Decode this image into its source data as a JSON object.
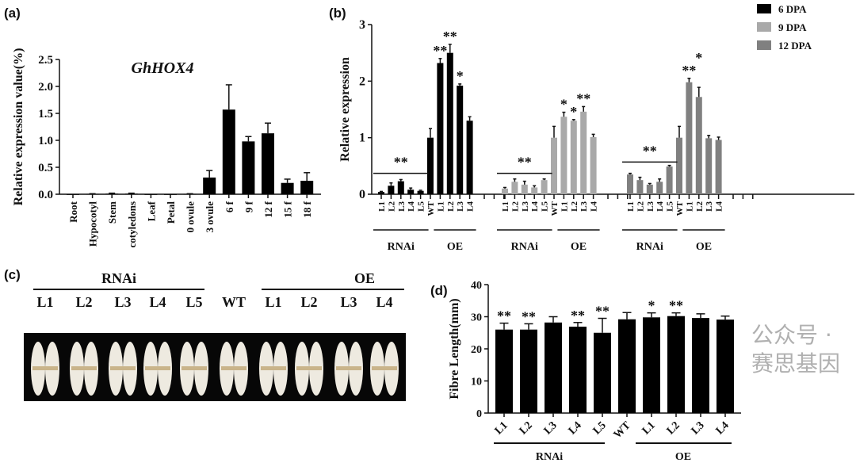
{
  "panel_labels": [
    "(a)",
    "(b)",
    "(c)",
    "(d)"
  ],
  "watermark": "公众号 · 赛思基因",
  "chart_data": [
    {
      "id": "a",
      "type": "bar",
      "title": "GhHOX4",
      "ylabel": "Relative expression value(%)",
      "xlabel": "",
      "ylim": [
        0,
        2.5
      ],
      "yticks": [
        "0.0",
        "0.5",
        "1.0",
        "1.5",
        "2.0",
        "2.5"
      ],
      "categories": [
        "Root",
        "Hypocotyl",
        "Stem",
        "cotyledons",
        "Leaf",
        "Petal",
        "0 ovule",
        "3 ovule",
        "6 f",
        "9 f",
        "12 f",
        "15 f",
        "18 f"
      ],
      "values": [
        0,
        0.005,
        0.01,
        0.01,
        0,
        0,
        0.005,
        0.31,
        1.57,
        0.98,
        1.13,
        0.21,
        0.25
      ],
      "errors": [
        0,
        0.005,
        0.01,
        0.01,
        0,
        0,
        0.005,
        0.13,
        0.46,
        0.09,
        0.19,
        0.07,
        0.15
      ],
      "color": "#000000"
    },
    {
      "id": "b",
      "type": "bar",
      "ylabel": "Relative expression",
      "ylim": [
        0,
        3
      ],
      "yticks": [
        "0",
        "1",
        "2",
        "3"
      ],
      "categories": [
        "L1",
        "L2",
        "L3",
        "L4",
        "L5",
        "WT",
        "L1",
        "L2",
        "L3",
        "L4"
      ],
      "group_labels": [
        "RNAi",
        "OE"
      ],
      "series": [
        {
          "name": "6 DPA",
          "color": "#000000",
          "values": [
            0.04,
            0.15,
            0.23,
            0.08,
            0.06,
            1.0,
            2.32,
            2.5,
            1.92,
            1.3
          ],
          "errors": [
            0.01,
            0.05,
            0.03,
            0.03,
            0.01,
            0.16,
            0.08,
            0.15,
            0.03,
            0.07
          ],
          "rnai_sig": "**",
          "oe_sig": [
            "**",
            "**",
            "*",
            ""
          ]
        },
        {
          "name": "9 DPA",
          "color": "#a9a9a9",
          "values": [
            0.1,
            0.22,
            0.17,
            0.12,
            0.25,
            1.0,
            1.37,
            1.3,
            1.46,
            1.01
          ],
          "errors": [
            0.02,
            0.05,
            0.06,
            0.03,
            0.02,
            0.2,
            0.08,
            0.02,
            0.09,
            0.05
          ],
          "rnai_sig": "**",
          "oe_sig": [
            "*",
            "*",
            "**",
            ""
          ]
        },
        {
          "name": "12 DPA",
          "color": "#808080",
          "values": [
            0.35,
            0.25,
            0.17,
            0.22,
            0.49,
            1.0,
            1.98,
            1.72,
            0.99,
            0.96
          ],
          "errors": [
            0.02,
            0.05,
            0.02,
            0.05,
            0.02,
            0.2,
            0.07,
            0.17,
            0.05,
            0.05
          ],
          "rnai_sig": "**",
          "oe_sig": [
            "**",
            "*",
            "",
            ""
          ]
        }
      ],
      "legend": "top-right"
    },
    {
      "id": "d",
      "type": "bar",
      "ylabel": "Fibre Length(mm)",
      "ylim": [
        0,
        40
      ],
      "yticks": [
        "0",
        "10",
        "20",
        "30",
        "40"
      ],
      "categories": [
        "L1",
        "L2",
        "L3",
        "L4",
        "L5",
        "WT",
        "L1",
        "L2",
        "L3",
        "L4"
      ],
      "group_labels": [
        "RNAi",
        "OE"
      ],
      "values": [
        26,
        26,
        28.2,
        26.9,
        25,
        29.2,
        29.8,
        30.2,
        29.6,
        29.1
      ],
      "errors": [
        2,
        1.8,
        1.8,
        1.3,
        4.5,
        2.1,
        1.4,
        1,
        1.3,
        1.1
      ],
      "significance": [
        "**",
        "**",
        "",
        "**",
        "**",
        "",
        "*",
        "**",
        "",
        ""
      ],
      "color": "#000000"
    }
  ],
  "photo": {
    "group_labels": [
      "RNAi",
      "OE"
    ],
    "columns": [
      "L1",
      "L2",
      "L3",
      "L4",
      "L5",
      "WT",
      "L1",
      "L2",
      "L3",
      "L4"
    ]
  }
}
